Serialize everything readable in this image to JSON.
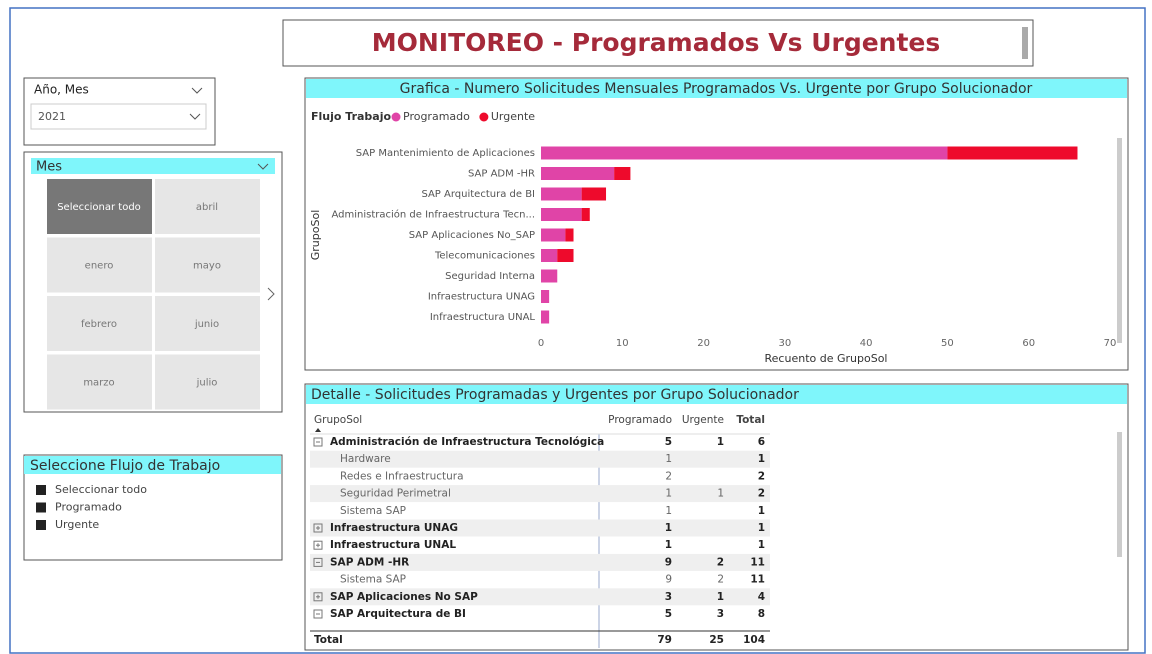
{
  "header": {
    "title": "MONITOREO - Programados Vs Urgentes"
  },
  "year_slicer": {
    "title": "Año, Mes",
    "value": "2021"
  },
  "month_slicer": {
    "title": "Mes",
    "items": [
      "Seleccionar todo",
      "abril",
      "enero",
      "mayo",
      "febrero",
      "junio",
      "marzo",
      "julio"
    ],
    "selected_index": 0
  },
  "flow_slicer": {
    "title": "Seleccione Flujo de Trabajo",
    "items": [
      "Seleccionar todo",
      "Programado",
      "Urgente"
    ]
  },
  "chart_data": {
    "type": "stacked-bar-horizontal",
    "title": "Grafica - Numero Solicitudes Mensuales Programados Vs. Urgente por Grupo Solucionador",
    "legend_title": "Flujo Trabajo",
    "xlabel": "Recuento de GrupoSol",
    "ylabel": "GrupoSol",
    "categories": [
      "SAP Mantenimiento de Aplicaciones",
      "SAP ADM -HR",
      "SAP Arquitectura de BI",
      "Administración de Infraestructura Tecn...",
      "SAP Aplicaciones No_SAP",
      "Telecomunicaciones",
      "Seguridad Interna",
      "Infraestructura UNAG",
      "Infraestructura UNAL"
    ],
    "series": [
      {
        "name": "Programado",
        "color": "#e044a7",
        "values": [
          50,
          9,
          5,
          5,
          3,
          2,
          2,
          1,
          1
        ]
      },
      {
        "name": "Urgente",
        "color": "#ee0a2c",
        "values": [
          16,
          2,
          3,
          1,
          1,
          2,
          0,
          0,
          0
        ]
      }
    ],
    "xlim": [
      0,
      70
    ],
    "xticks": [
      0,
      10,
      20,
      30,
      40,
      50,
      60,
      70
    ]
  },
  "table": {
    "title": "Detalle - Solicitudes Programadas y Urgentes por Grupo Solucionador",
    "columns": [
      "GrupoSol",
      "Programado",
      "Urgente",
      "Total"
    ],
    "rows": [
      {
        "cells": [
          "Administración de Infraestructura Tecnológica",
          5,
          1,
          6
        ],
        "level": "group",
        "expanded": true
      },
      {
        "cells": [
          "Hardware",
          1,
          null,
          1
        ],
        "level": "child"
      },
      {
        "cells": [
          "Redes e Infraestructura",
          2,
          null,
          2
        ],
        "level": "child"
      },
      {
        "cells": [
          "Seguridad Perimetral",
          1,
          1,
          2
        ],
        "level": "child"
      },
      {
        "cells": [
          "Sistema SAP",
          1,
          null,
          1
        ],
        "level": "child"
      },
      {
        "cells": [
          "Infraestructura UNAG",
          1,
          null,
          1
        ],
        "level": "group",
        "expanded": false
      },
      {
        "cells": [
          "Infraestructura UNAL",
          1,
          null,
          1
        ],
        "level": "group",
        "expanded": false
      },
      {
        "cells": [
          "SAP ADM -HR",
          9,
          2,
          11
        ],
        "level": "group",
        "expanded": true
      },
      {
        "cells": [
          "Sistema SAP",
          9,
          2,
          11
        ],
        "level": "child"
      },
      {
        "cells": [
          "SAP Aplicaciones No SAP",
          3,
          1,
          4
        ],
        "level": "group",
        "expanded": false
      },
      {
        "cells": [
          "SAP Arquitectura de BI",
          5,
          3,
          8
        ],
        "level": "group",
        "expanded": true
      }
    ],
    "total": [
      "Total",
      79,
      25,
      104
    ]
  }
}
